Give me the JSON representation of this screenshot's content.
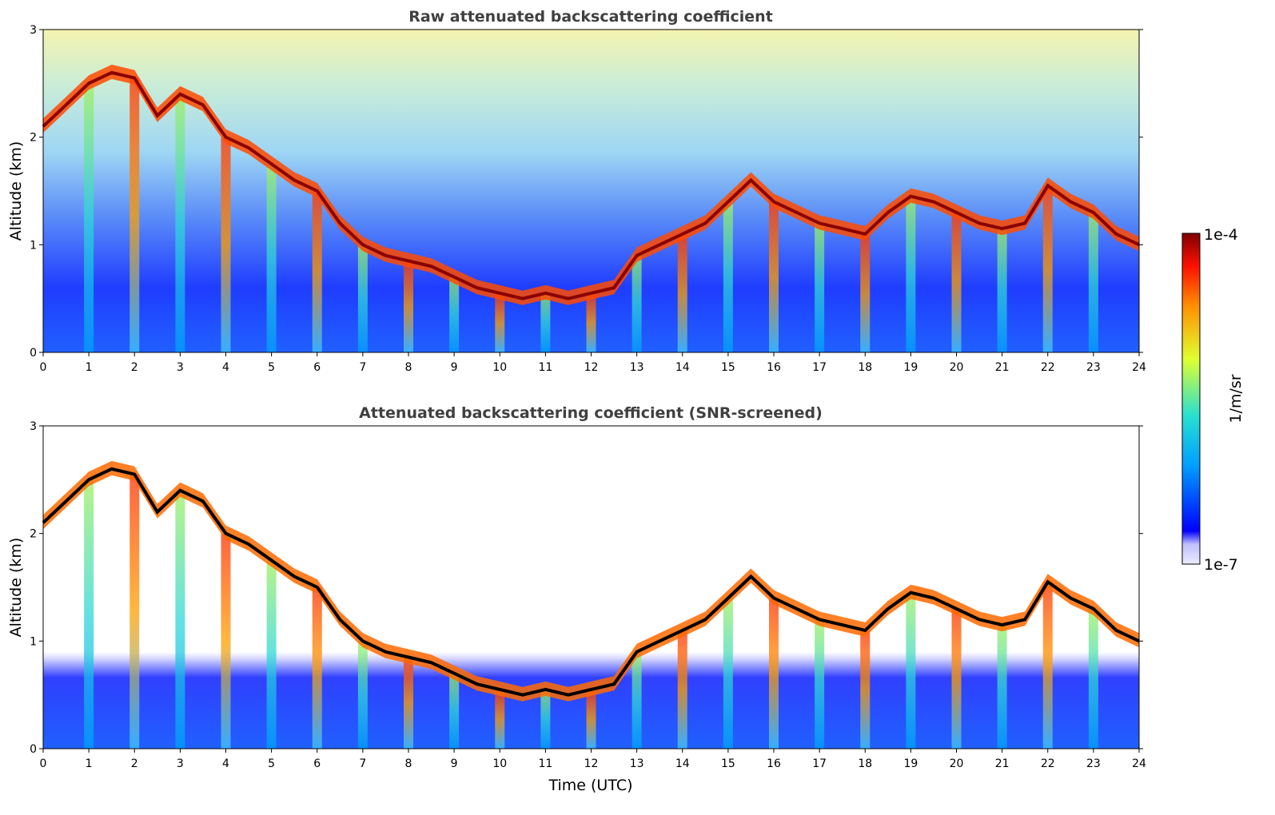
{
  "chart_data": [
    {
      "type": "heatmap",
      "title": "Raw attenuated backscattering coefficient",
      "xlabel": "",
      "ylabel": "Altitude (km)",
      "xlim": [
        0,
        24
      ],
      "ylim": [
        0,
        3
      ],
      "xticks": [
        "0",
        "1",
        "2",
        "3",
        "4",
        "5",
        "6",
        "7",
        "8",
        "9",
        "10",
        "11",
        "12",
        "13",
        "14",
        "15",
        "16",
        "17",
        "18",
        "19",
        "20",
        "21",
        "22",
        "23",
        "24"
      ],
      "yticks": [
        "0",
        "1",
        "2",
        "3"
      ],
      "screened": false
    },
    {
      "type": "heatmap",
      "title": "Attenuated backscattering coefficient (SNR-screened)",
      "xlabel": "Time (UTC)",
      "ylabel": "Altitude (km)",
      "xlim": [
        0,
        24
      ],
      "ylim": [
        0,
        3
      ],
      "xticks": [
        "0",
        "1",
        "2",
        "3",
        "4",
        "5",
        "6",
        "7",
        "8",
        "9",
        "10",
        "11",
        "12",
        "13",
        "14",
        "15",
        "16",
        "17",
        "18",
        "19",
        "20",
        "21",
        "22",
        "23",
        "24"
      ],
      "yticks": [
        "0",
        "1",
        "2",
        "3"
      ],
      "screened": true
    }
  ],
  "colorbar": {
    "max_label": "1e-4",
    "min_label": "1e-7",
    "unit_label": "1/m/sr",
    "scale": "log",
    "colormap": [
      "#ebebff",
      "#0000ff",
      "#00a0ff",
      "#28e0d0",
      "#e0ff30",
      "#ff9000",
      "#ff1000",
      "#800000"
    ]
  },
  "cloud_layer_profile": {
    "time_utc": [
      0,
      0.5,
      1,
      1.5,
      2,
      2.5,
      3,
      3.5,
      4,
      4.5,
      5,
      5.5,
      6,
      6.5,
      7,
      7.5,
      8,
      8.5,
      9,
      9.5,
      10,
      10.5,
      11,
      11.5,
      12,
      12.5,
      13,
      13.5,
      14,
      14.5,
      15,
      15.5,
      16,
      16.5,
      17,
      17.5,
      18,
      18.5,
      19,
      19.5,
      20,
      20.5,
      21,
      21.5,
      22,
      22.5,
      23,
      23.5,
      24
    ],
    "base_altitude_km": [
      2.1,
      2.3,
      2.5,
      2.6,
      2.55,
      2.2,
      2.4,
      2.3,
      2.0,
      1.9,
      1.75,
      1.6,
      1.5,
      1.2,
      1.0,
      0.9,
      0.85,
      0.8,
      0.7,
      0.6,
      0.55,
      0.5,
      0.55,
      0.5,
      0.55,
      0.6,
      0.9,
      1.0,
      1.1,
      1.2,
      1.4,
      1.6,
      1.4,
      1.3,
      1.2,
      1.15,
      1.1,
      1.3,
      1.45,
      1.4,
      1.3,
      1.2,
      1.15,
      1.2,
      1.55,
      1.4,
      1.3,
      1.1,
      1.0
    ]
  }
}
